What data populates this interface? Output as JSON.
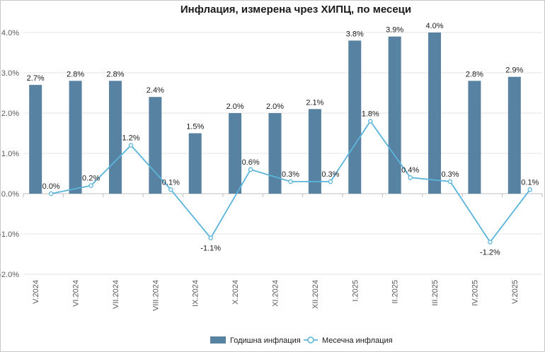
{
  "chart_data": {
    "type": "bar",
    "title": "Инфлация, измерена чрез ХИПЦ, по месеци",
    "xlabel": "",
    "ylabel": "",
    "categories": [
      "V.2024",
      "VI.2024",
      "VII.2024",
      "VIII.2024",
      "IX.2024",
      "X.2024",
      "XI.2024",
      "XII.2024",
      "I.2025",
      "II.2025",
      "III.2025",
      "IV.2025",
      "V.2025"
    ],
    "series": [
      {
        "name": "Годишна инфлация",
        "type": "bar",
        "color": "#5882a1",
        "values": [
          2.7,
          2.8,
          2.8,
          2.4,
          1.5,
          2.0,
          2.0,
          2.1,
          3.8,
          3.9,
          4.0,
          2.8,
          2.9
        ],
        "labels": [
          "2.7%",
          "2.8%",
          "2.8%",
          "2.4%",
          "1.5%",
          "2.0%",
          "2.0%",
          "2.1%",
          "3.8%",
          "3.9%",
          "4.0%",
          "2.8%",
          "2.9%"
        ]
      },
      {
        "name": "Месечна инфлация",
        "type": "line",
        "color": "#5ab4dc",
        "values": [
          0.0,
          0.2,
          1.2,
          0.1,
          -1.1,
          0.6,
          0.3,
          0.3,
          1.8,
          0.4,
          0.3,
          -1.2,
          0.1
        ],
        "labels": [
          "0.0%",
          "0.2%",
          "1.2%",
          "0.1%",
          "-1.1%",
          "0.6%",
          "0.3%",
          "0.3%",
          "1.8%",
          "0.4%",
          "0.3%",
          "-1.2%",
          "0.1%"
        ]
      }
    ],
    "ylim": [
      -2.0,
      4.0
    ],
    "yticks": [
      -2.0,
      -1.0,
      0.0,
      1.0,
      2.0,
      3.0,
      4.0
    ],
    "ytick_labels": [
      "-2.0%",
      "-1.0%",
      "0.0%",
      "1.0%",
      "2.0%",
      "3.0%",
      "4.0%"
    ],
    "grid": true,
    "legend_position": "bottom"
  }
}
